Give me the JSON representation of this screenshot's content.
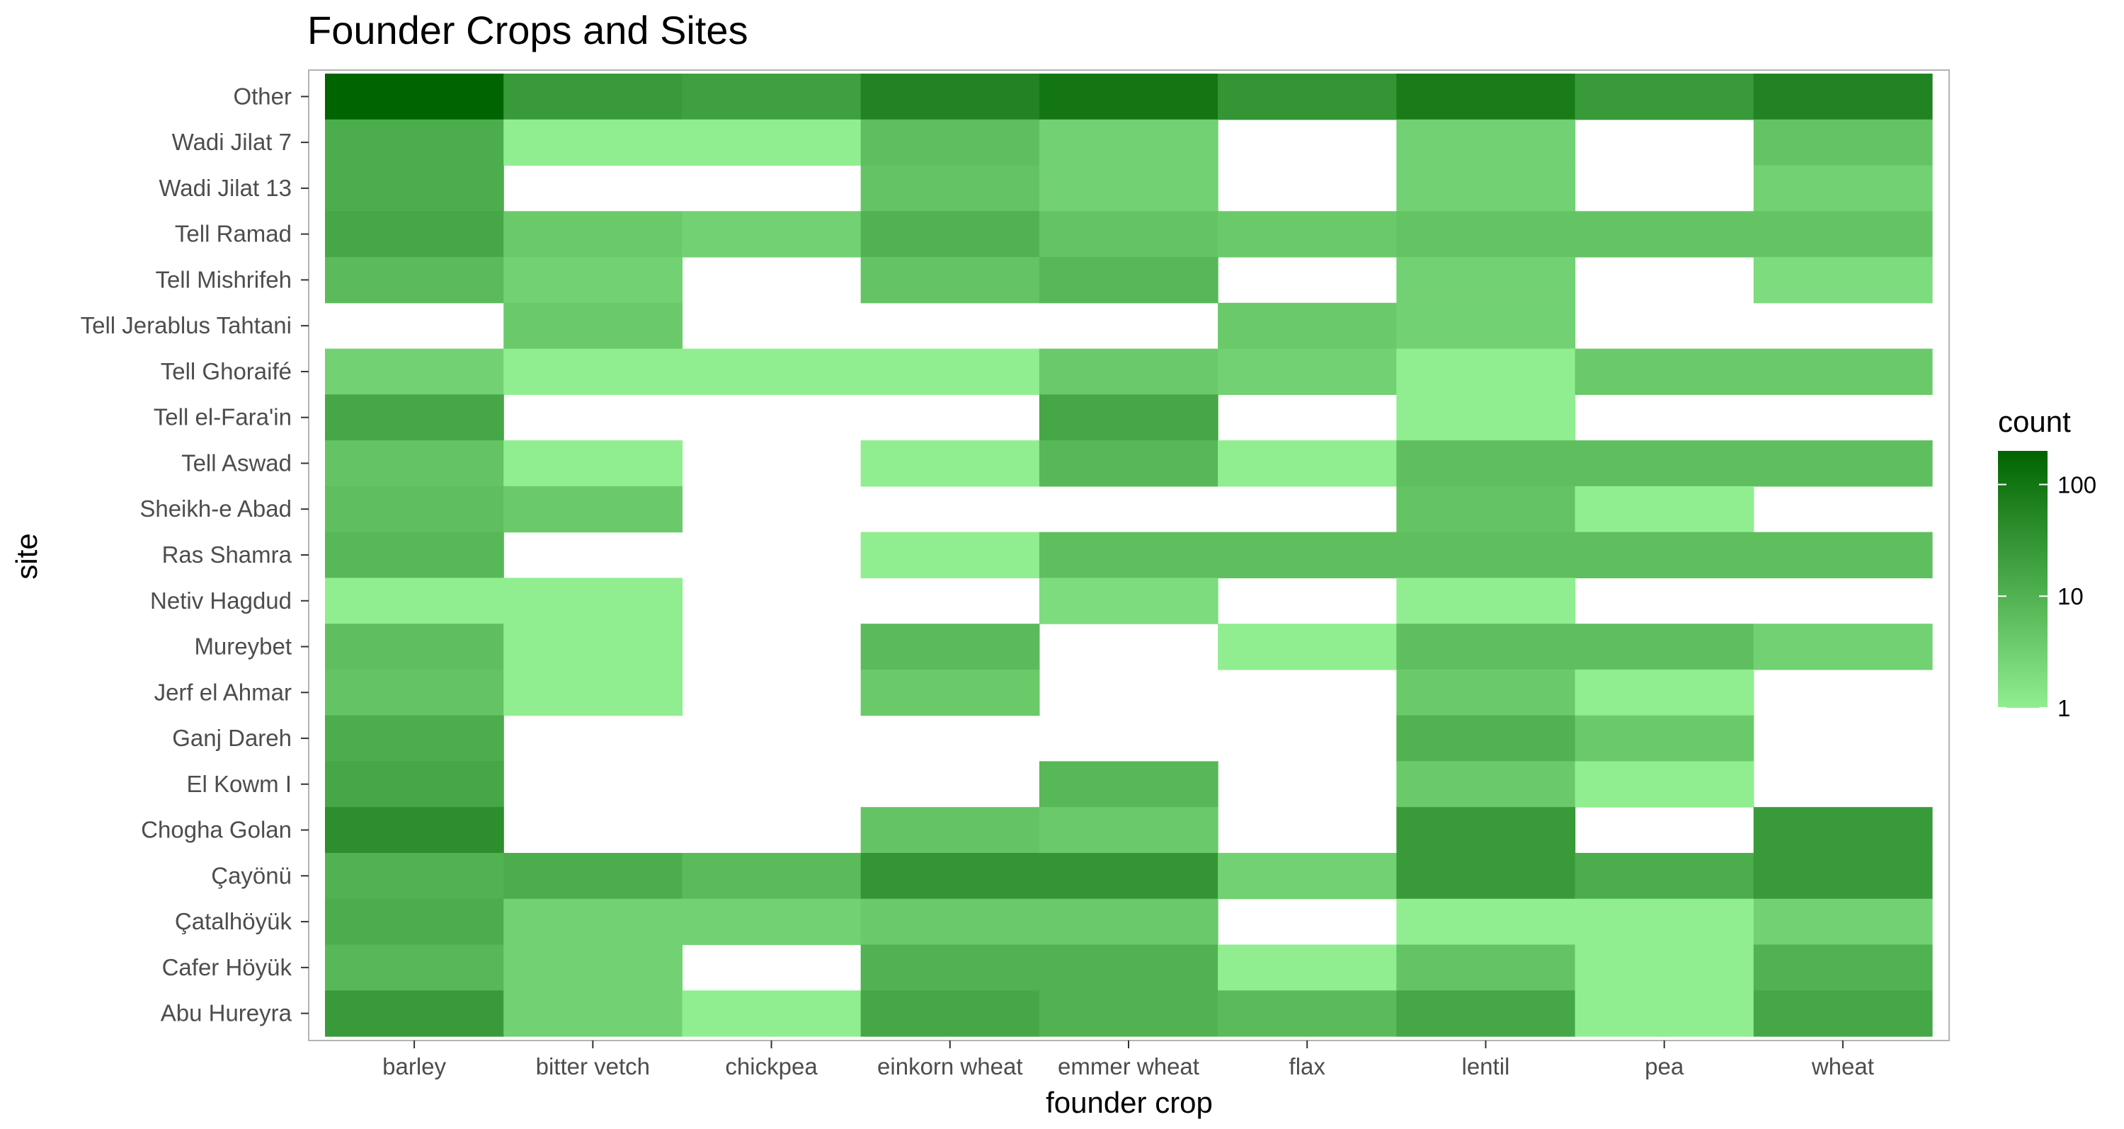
{
  "chart_data": {
    "type": "heatmap",
    "title": "Founder Crops and Sites",
    "xlabel": "founder crop",
    "ylabel": "site",
    "x_categories": [
      "barley",
      "bitter vetch",
      "chickpea",
      "einkorn wheat",
      "emmer wheat",
      "flax",
      "lentil",
      "pea",
      "wheat"
    ],
    "y_categories_top_to_bottom": [
      "Other",
      "Wadi Jilat 7",
      "Wadi Jilat 13",
      "Tell Ramad",
      "Tell Mishrifeh",
      "Tell Jerablus Tahtani",
      "Tell Ghoraifé",
      "Tell el-Fara'in",
      "Tell Aswad",
      "Sheikh-e Abad",
      "Ras Shamra",
      "Netiv Hagdud",
      "Mureybet",
      "Jerf el Ahmar",
      "Ganj Dareh",
      "El Kowm I",
      "Chogha Golan",
      "Çayönü",
      "Çatalhöyük",
      "Cafer Höyük",
      "Abu Hureyra"
    ],
    "values": [
      [
        200,
        25,
        20,
        60,
        100,
        30,
        80,
        25,
        60
      ],
      [
        12,
        1,
        1,
        6,
        3,
        null,
        3,
        null,
        5
      ],
      [
        12,
        null,
        null,
        5,
        3,
        null,
        3,
        null,
        3
      ],
      [
        15,
        4,
        3,
        10,
        5,
        4,
        5,
        5,
        5
      ],
      [
        7,
        3,
        null,
        5,
        8,
        null,
        3,
        null,
        2
      ],
      [
        null,
        4,
        null,
        null,
        null,
        4,
        3,
        null,
        null
      ],
      [
        3,
        1,
        1,
        1,
        4,
        3,
        1,
        4,
        4
      ],
      [
        15,
        null,
        null,
        null,
        15,
        null,
        1,
        null,
        null
      ],
      [
        5,
        1,
        null,
        1,
        8,
        1,
        6,
        6,
        6
      ],
      [
        6,
        4,
        null,
        null,
        null,
        null,
        5,
        1,
        null
      ],
      [
        8,
        null,
        null,
        1,
        6,
        6,
        6,
        6,
        6
      ],
      [
        1,
        1,
        null,
        null,
        2,
        null,
        1,
        null,
        null
      ],
      [
        6,
        1,
        null,
        7,
        null,
        1,
        6,
        6,
        3
      ],
      [
        5,
        1,
        null,
        4,
        null,
        null,
        4,
        1,
        null
      ],
      [
        12,
        null,
        null,
        null,
        null,
        null,
        10,
        4,
        null
      ],
      [
        15,
        null,
        null,
        null,
        8,
        null,
        4,
        1,
        null
      ],
      [
        40,
        null,
        null,
        5,
        4,
        null,
        25,
        null,
        25
      ],
      [
        10,
        12,
        7,
        30,
        30,
        3,
        25,
        12,
        25
      ],
      [
        12,
        3,
        3,
        4,
        4,
        null,
        1,
        1,
        3
      ],
      [
        8,
        3,
        null,
        10,
        10,
        1,
        5,
        1,
        10
      ],
      [
        25,
        3,
        1,
        15,
        10,
        7,
        15,
        1,
        15
      ]
    ],
    "color_scale": {
      "type": "log",
      "low_color": "#90EE90",
      "high_color": "#006400",
      "min": 1,
      "max": 200
    },
    "legend": {
      "title": "count",
      "ticks": [
        "1",
        "10",
        "100"
      ],
      "tick_values": [
        1,
        10,
        100
      ],
      "position": "right"
    }
  }
}
